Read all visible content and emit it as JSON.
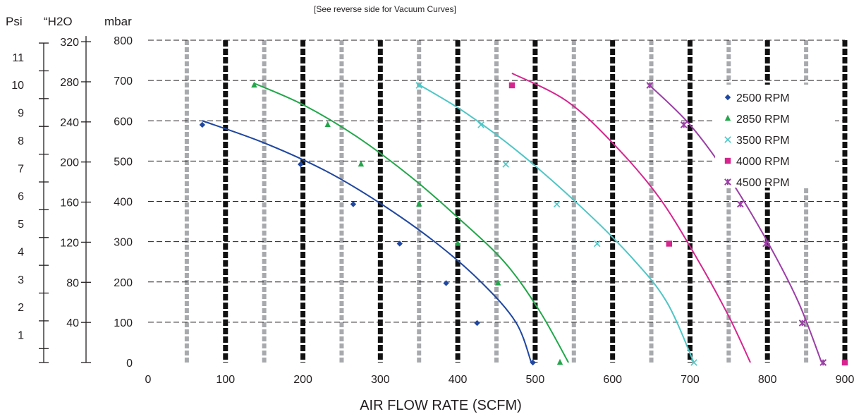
{
  "header": {
    "note": "[See reverse side for Vacuum Curves]",
    "psi_label": "Psi",
    "h2o_label": "“H2O",
    "mbar_label": "mbar"
  },
  "chart_data": {
    "type": "scatter",
    "xlabel": "AIR FLOW RATE (SCFM)",
    "ylabel": "mbar",
    "xlim": [
      0,
      900
    ],
    "ylim": [
      0,
      800
    ],
    "x_ticks": [
      "0",
      "100",
      "200",
      "300",
      "400",
      "500",
      "600",
      "700",
      "800",
      "900"
    ],
    "y_ticks": [
      "0",
      "100",
      "200",
      "300",
      "400",
      "500",
      "600",
      "700",
      "800"
    ],
    "secondary_axes": {
      "h2o_ticks": [
        "40",
        "80",
        "120",
        "160",
        "200",
        "240",
        "280",
        "320"
      ],
      "psi_ticks": [
        "1",
        "2",
        "3",
        "4",
        "5",
        "6",
        "7",
        "8",
        "9",
        "10",
        "11"
      ]
    },
    "grid": "dashed horizontal; alternating black and gray bands on vertical",
    "legend_position": "right",
    "series": [
      {
        "name": "2500 RPM",
        "color": "#1f47a0",
        "marker": "diamond",
        "points": [
          [
            70,
            590
          ],
          [
            197,
            492
          ],
          [
            265,
            393
          ],
          [
            325,
            295
          ],
          [
            385,
            197
          ],
          [
            425,
            98
          ],
          [
            497,
            0
          ]
        ],
        "fit": [
          [
            70,
            600
          ],
          [
            150,
            545
          ],
          [
            230,
            475
          ],
          [
            300,
            395
          ],
          [
            370,
            300
          ],
          [
            430,
            200
          ],
          [
            475,
            100
          ],
          [
            495,
            0
          ]
        ]
      },
      {
        "name": "2850 RPM",
        "color": "#22a64a",
        "marker": "triangle",
        "points": [
          [
            137,
            688
          ],
          [
            232,
            590
          ],
          [
            275,
            492
          ],
          [
            350,
            393
          ],
          [
            400,
            295
          ],
          [
            452,
            197
          ],
          [
            532,
            0
          ]
        ],
        "fit": [
          [
            137,
            693
          ],
          [
            200,
            640
          ],
          [
            270,
            560
          ],
          [
            340,
            460
          ],
          [
            400,
            360
          ],
          [
            460,
            250
          ],
          [
            505,
            130
          ],
          [
            543,
            0
          ]
        ]
      },
      {
        "name": "3500 RPM",
        "color": "#4ec6c6",
        "marker": "x",
        "points": [
          [
            350,
            688
          ],
          [
            430,
            590
          ],
          [
            462,
            492
          ],
          [
            528,
            393
          ],
          [
            580,
            295
          ],
          [
            705,
            0
          ]
        ],
        "fit": [
          [
            347,
            693
          ],
          [
            410,
            620
          ],
          [
            480,
            520
          ],
          [
            560,
            385
          ],
          [
            625,
            260
          ],
          [
            670,
            150
          ],
          [
            705,
            0
          ]
        ]
      },
      {
        "name": "4000 RPM",
        "color": "#d6258f",
        "marker": "square",
        "points": [
          [
            470,
            688
          ],
          [
            673,
            295
          ],
          [
            900,
            0
          ]
        ],
        "fit": [
          [
            470,
            718
          ],
          [
            540,
            650
          ],
          [
            600,
            545
          ],
          [
            660,
            410
          ],
          [
            710,
            255
          ],
          [
            750,
            115
          ],
          [
            778,
            0
          ]
        ]
      },
      {
        "name": "4500 RPM",
        "color": "#9b3fa6",
        "marker": "star",
        "points": [
          [
            648,
            688
          ],
          [
            692,
            590
          ],
          [
            740,
            492
          ],
          [
            765,
            393
          ],
          [
            798,
            295
          ],
          [
            845,
            98
          ],
          [
            872,
            0
          ]
        ],
        "fit": [
          [
            645,
            693
          ],
          [
            700,
            590
          ],
          [
            750,
            460
          ],
          [
            800,
            300
          ],
          [
            840,
            150
          ],
          [
            870,
            0
          ]
        ]
      }
    ]
  }
}
